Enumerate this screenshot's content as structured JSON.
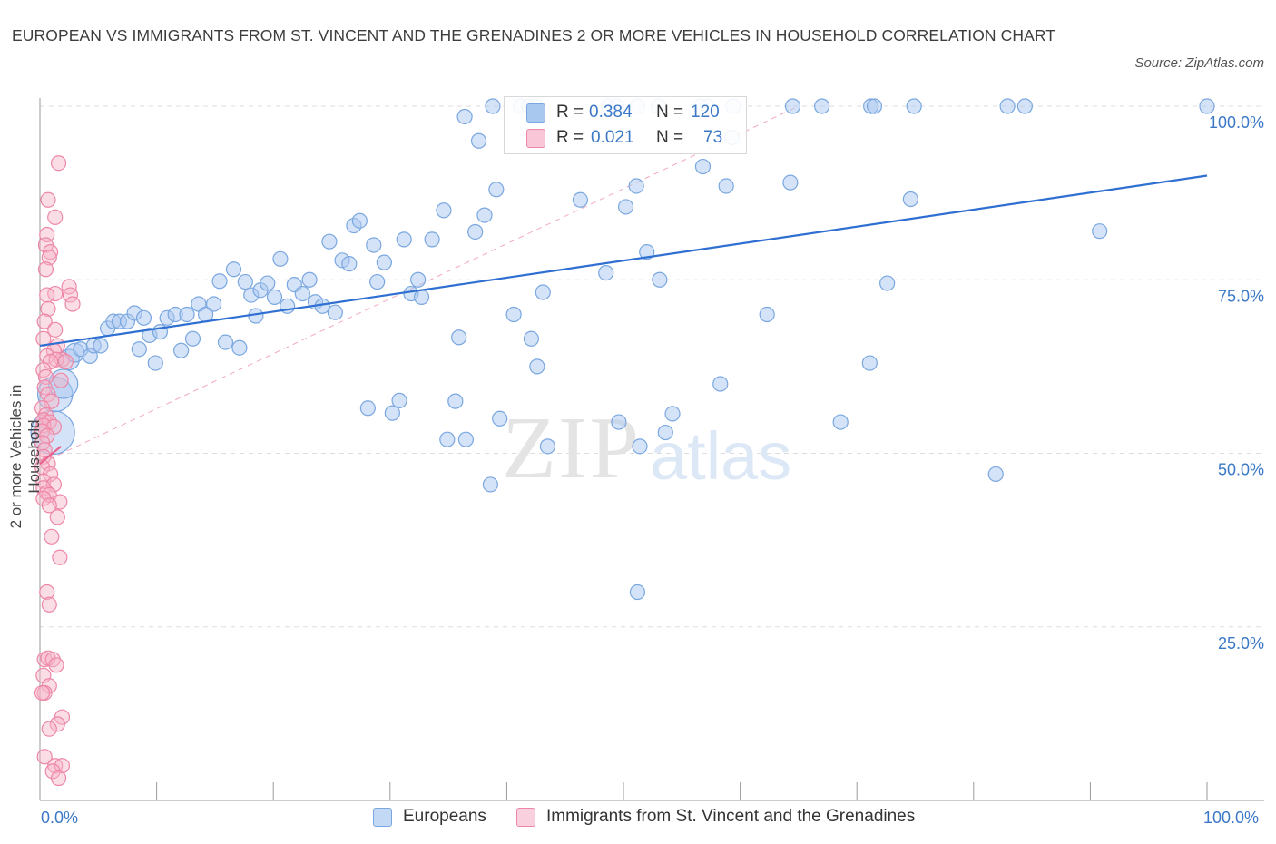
{
  "title": "EUROPEAN VS IMMIGRANTS FROM ST. VINCENT AND THE GRENADINES 2 OR MORE VEHICLES IN HOUSEHOLD CORRELATION CHART",
  "source": "Source: ZipAtlas.com",
  "watermark": {
    "zip": "ZIP",
    "atlas": "atlas"
  },
  "legend": {
    "rows": [
      {
        "r_label": "R =",
        "r_value": "0.384",
        "n_label": "N =",
        "n_value": "120"
      },
      {
        "r_label": "R =",
        "r_value": "0.021",
        "n_label": "N =",
        "n_value": "73"
      }
    ]
  },
  "colors": {
    "blue_fill": "#a9c8f0",
    "blue_stroke": "#7aa7e0",
    "blue_line": "#2e6fd1",
    "pink_fill": "#f6b3c8",
    "pink_stroke": "#ee87a7",
    "pink_line": "#e8628c",
    "grid": "#dddddd",
    "tick_label": "#3b78c6"
  },
  "chart_data": {
    "type": "scatter",
    "title": "EUROPEAN VS IMMIGRANTS FROM ST. VINCENT AND THE GRENADINES 2 OR MORE VEHICLES IN HOUSEHOLD CORRELATION CHART",
    "xlabel": "",
    "ylabel": "2 or more Vehicles in Household",
    "xlim": [
      0,
      100
    ],
    "ylim": [
      0,
      100
    ],
    "x_tick_labels": [
      "0.0%",
      "100.0%"
    ],
    "y_tick_labels": [
      "25.0%",
      "50.0%",
      "75.0%",
      "100.0%"
    ],
    "y_ticks": [
      25,
      50,
      75,
      100
    ],
    "grid": true,
    "legend_position": "top-center",
    "series": [
      {
        "name": "Europeans",
        "color": "#a9c8f0",
        "trend": {
          "x": [
            0,
            100
          ],
          "y": [
            65.5,
            90
          ]
        },
        "points": [
          {
            "x": 1.1,
            "y": 53,
            "s": 3
          },
          {
            "x": 1.3,
            "y": 58.5,
            "s": 2.4
          },
          {
            "x": 2,
            "y": 60,
            "s": 2
          },
          {
            "x": 2.5,
            "y": 63.5,
            "s": 1.4
          },
          {
            "x": 3,
            "y": 64.5,
            "s": 1.3
          },
          {
            "x": 3.5,
            "y": 65,
            "s": 1
          },
          {
            "x": 4.3,
            "y": 64
          },
          {
            "x": 4.6,
            "y": 65.5
          },
          {
            "x": 5.2,
            "y": 65.5
          },
          {
            "x": 5.8,
            "y": 68
          },
          {
            "x": 6.3,
            "y": 69
          },
          {
            "x": 6.8,
            "y": 69
          },
          {
            "x": 7.5,
            "y": 69
          },
          {
            "x": 8.1,
            "y": 70.2
          },
          {
            "x": 8.5,
            "y": 65
          },
          {
            "x": 8.9,
            "y": 69.5
          },
          {
            "x": 9.4,
            "y": 67
          },
          {
            "x": 9.9,
            "y": 63
          },
          {
            "x": 10.3,
            "y": 67.5
          },
          {
            "x": 10.9,
            "y": 69.5
          },
          {
            "x": 11.6,
            "y": 70
          },
          {
            "x": 12.1,
            "y": 64.8
          },
          {
            "x": 12.6,
            "y": 70
          },
          {
            "x": 13.1,
            "y": 66.5
          },
          {
            "x": 13.6,
            "y": 71.5
          },
          {
            "x": 14.2,
            "y": 70
          },
          {
            "x": 14.9,
            "y": 71.5
          },
          {
            "x": 15.4,
            "y": 74.8
          },
          {
            "x": 15.9,
            "y": 66
          },
          {
            "x": 16.6,
            "y": 76.5
          },
          {
            "x": 17.1,
            "y": 65.2
          },
          {
            "x": 17.6,
            "y": 74.7
          },
          {
            "x": 18.1,
            "y": 72.8
          },
          {
            "x": 18.5,
            "y": 69.8
          },
          {
            "x": 18.9,
            "y": 73.5
          },
          {
            "x": 19.5,
            "y": 74.5
          },
          {
            "x": 20.1,
            "y": 72.5
          },
          {
            "x": 20.6,
            "y": 78
          },
          {
            "x": 21.2,
            "y": 71.2
          },
          {
            "x": 21.8,
            "y": 74.3
          },
          {
            "x": 22.5,
            "y": 73
          },
          {
            "x": 23.1,
            "y": 75
          },
          {
            "x": 23.6,
            "y": 71.8
          },
          {
            "x": 24.2,
            "y": 71.2
          },
          {
            "x": 24.8,
            "y": 80.5
          },
          {
            "x": 25.3,
            "y": 70.3
          },
          {
            "x": 25.9,
            "y": 77.8
          },
          {
            "x": 26.5,
            "y": 77.3
          },
          {
            "x": 26.9,
            "y": 82.8
          },
          {
            "x": 27.4,
            "y": 83.5
          },
          {
            "x": 28.1,
            "y": 56.5
          },
          {
            "x": 28.6,
            "y": 80
          },
          {
            "x": 28.9,
            "y": 74.7
          },
          {
            "x": 29.5,
            "y": 77.5
          },
          {
            "x": 30.2,
            "y": 55.8
          },
          {
            "x": 30.8,
            "y": 57.6
          },
          {
            "x": 31.2,
            "y": 80.8
          },
          {
            "x": 31.8,
            "y": 73
          },
          {
            "x": 32.4,
            "y": 75
          },
          {
            "x": 32.7,
            "y": 72.5
          },
          {
            "x": 33.6,
            "y": 80.8
          },
          {
            "x": 34.6,
            "y": 85
          },
          {
            "x": 34.9,
            "y": 52
          },
          {
            "x": 35.6,
            "y": 57.5
          },
          {
            "x": 35.9,
            "y": 66.7
          },
          {
            "x": 36.5,
            "y": 52
          },
          {
            "x": 37.3,
            "y": 81.9
          },
          {
            "x": 37.6,
            "y": 95
          },
          {
            "x": 38.1,
            "y": 84.3
          },
          {
            "x": 38.6,
            "y": 45.5
          },
          {
            "x": 39.1,
            "y": 88
          },
          {
            "x": 39.4,
            "y": 55
          },
          {
            "x": 40.6,
            "y": 70
          },
          {
            "x": 42.1,
            "y": 66.5
          },
          {
            "x": 42.6,
            "y": 62.5
          },
          {
            "x": 43.1,
            "y": 73.2
          },
          {
            "x": 43.5,
            "y": 51
          },
          {
            "x": 46.3,
            "y": 86.5
          },
          {
            "x": 48.5,
            "y": 76
          },
          {
            "x": 49.6,
            "y": 54.5
          },
          {
            "x": 50.2,
            "y": 85.5
          },
          {
            "x": 51.1,
            "y": 88.5
          },
          {
            "x": 51.4,
            "y": 51
          },
          {
            "x": 52,
            "y": 79
          },
          {
            "x": 53.1,
            "y": 75
          },
          {
            "x": 53.6,
            "y": 53
          },
          {
            "x": 54.2,
            "y": 55.7
          },
          {
            "x": 56.8,
            "y": 91.3
          },
          {
            "x": 58.3,
            "y": 60
          },
          {
            "x": 58.8,
            "y": 88.5
          },
          {
            "x": 59.3,
            "y": 95.5
          },
          {
            "x": 62.3,
            "y": 70
          },
          {
            "x": 64.3,
            "y": 89
          },
          {
            "x": 68.6,
            "y": 54.5
          },
          {
            "x": 71.1,
            "y": 63
          },
          {
            "x": 72.6,
            "y": 74.5
          },
          {
            "x": 74.6,
            "y": 86.6
          },
          {
            "x": 81.9,
            "y": 47
          },
          {
            "x": 90.8,
            "y": 82
          },
          {
            "x": 51.2,
            "y": 30
          },
          {
            "x": 36.4,
            "y": 98.5
          },
          {
            "x": 38.8,
            "y": 100
          },
          {
            "x": 41.2,
            "y": 100
          },
          {
            "x": 41.9,
            "y": 100
          },
          {
            "x": 42.5,
            "y": 100
          },
          {
            "x": 48.7,
            "y": 100
          },
          {
            "x": 49.4,
            "y": 100
          },
          {
            "x": 51.2,
            "y": 100
          },
          {
            "x": 56.6,
            "y": 100
          },
          {
            "x": 57.2,
            "y": 100
          },
          {
            "x": 59.4,
            "y": 100
          },
          {
            "x": 71.2,
            "y": 100
          },
          {
            "x": 71.5,
            "y": 100
          },
          {
            "x": 74.9,
            "y": 100
          },
          {
            "x": 82.9,
            "y": 100
          },
          {
            "x": 84.4,
            "y": 100
          },
          {
            "x": 100,
            "y": 100
          },
          {
            "x": 64.5,
            "y": 100
          },
          {
            "x": 67,
            "y": 100
          },
          {
            "x": 53,
            "y": 100
          }
        ]
      },
      {
        "name": "Immigrants from St. Vincent and the Grenadines",
        "color": "#f6b3c8",
        "trend": {
          "x": [
            0,
            1.8
          ],
          "y": [
            48.5,
            51
          ]
        },
        "trend_dashed": {
          "x": [
            0,
            65
          ],
          "y": [
            48.5,
            100
          ]
        },
        "points": [
          {
            "x": 1.6,
            "y": 91.8
          },
          {
            "x": 0.7,
            "y": 86.5
          },
          {
            "x": 1.3,
            "y": 84
          },
          {
            "x": 0.6,
            "y": 81.5
          },
          {
            "x": 0.5,
            "y": 80
          },
          {
            "x": 0.9,
            "y": 79
          },
          {
            "x": 0.8,
            "y": 78.2
          },
          {
            "x": 0.5,
            "y": 76.5
          },
          {
            "x": 2.5,
            "y": 74
          },
          {
            "x": 1.3,
            "y": 73
          },
          {
            "x": 0.6,
            "y": 72.8
          },
          {
            "x": 2.6,
            "y": 72.8
          },
          {
            "x": 2.8,
            "y": 71.5
          },
          {
            "x": 0.7,
            "y": 70.8
          },
          {
            "x": 0.4,
            "y": 69
          },
          {
            "x": 1.3,
            "y": 67.8
          },
          {
            "x": 0.3,
            "y": 66.5
          },
          {
            "x": 1.5,
            "y": 65.5
          },
          {
            "x": 1.2,
            "y": 64.8
          },
          {
            "x": 0.6,
            "y": 64
          },
          {
            "x": 1.9,
            "y": 63.5
          },
          {
            "x": 1.4,
            "y": 63.5
          },
          {
            "x": 0.9,
            "y": 63.2
          },
          {
            "x": 2.2,
            "y": 63.2
          },
          {
            "x": 0.3,
            "y": 62
          },
          {
            "x": 0.5,
            "y": 61
          },
          {
            "x": 1.8,
            "y": 60.5
          },
          {
            "x": 0.4,
            "y": 59.5
          },
          {
            "x": 0.7,
            "y": 58.5
          },
          {
            "x": 1,
            "y": 57.5
          },
          {
            "x": 0.2,
            "y": 56.5
          },
          {
            "x": 0.5,
            "y": 55.5
          },
          {
            "x": 0.3,
            "y": 54.8
          },
          {
            "x": 0.8,
            "y": 54.5
          },
          {
            "x": 0.3,
            "y": 54
          },
          {
            "x": 1.2,
            "y": 53.8
          },
          {
            "x": 0.2,
            "y": 53.2
          },
          {
            "x": 0.6,
            "y": 52.5
          },
          {
            "x": 0.2,
            "y": 51.5
          },
          {
            "x": 0.4,
            "y": 50.5
          },
          {
            "x": 0.3,
            "y": 49.5
          },
          {
            "x": 0.7,
            "y": 48.5
          },
          {
            "x": 0.2,
            "y": 48
          },
          {
            "x": 0.9,
            "y": 47
          },
          {
            "x": 0.3,
            "y": 46
          },
          {
            "x": 1.2,
            "y": 45.5
          },
          {
            "x": 0.3,
            "y": 45
          },
          {
            "x": 0.6,
            "y": 44.3
          },
          {
            "x": 0.8,
            "y": 44
          },
          {
            "x": 0.3,
            "y": 43.5
          },
          {
            "x": 1.7,
            "y": 43
          },
          {
            "x": 0.8,
            "y": 42.5
          },
          {
            "x": 1.5,
            "y": 40.8
          },
          {
            "x": 1,
            "y": 38
          },
          {
            "x": 1.7,
            "y": 35
          },
          {
            "x": 0.6,
            "y": 30
          },
          {
            "x": 0.8,
            "y": 28.2
          },
          {
            "x": 0.4,
            "y": 20.3
          },
          {
            "x": 0.7,
            "y": 20.5
          },
          {
            "x": 1.1,
            "y": 20.3
          },
          {
            "x": 1.4,
            "y": 19.5
          },
          {
            "x": 0.3,
            "y": 18
          },
          {
            "x": 0.8,
            "y": 16.5
          },
          {
            "x": 0.4,
            "y": 15.5
          },
          {
            "x": 1.9,
            "y": 12
          },
          {
            "x": 1.5,
            "y": 11
          },
          {
            "x": 0.8,
            "y": 10.3
          },
          {
            "x": 0.4,
            "y": 6.3
          },
          {
            "x": 1.3,
            "y": 5
          },
          {
            "x": 1.9,
            "y": 5
          },
          {
            "x": 1.1,
            "y": 4.2
          },
          {
            "x": 1.6,
            "y": 3.2
          },
          {
            "x": 0.2,
            "y": 15.5
          }
        ]
      }
    ]
  },
  "bottom_legend": [
    "Europeans",
    "Immigrants from St. Vincent and the Grenadines"
  ],
  "axis": {
    "x_min_label": "0.0%",
    "x_max_label": "100.0%"
  }
}
